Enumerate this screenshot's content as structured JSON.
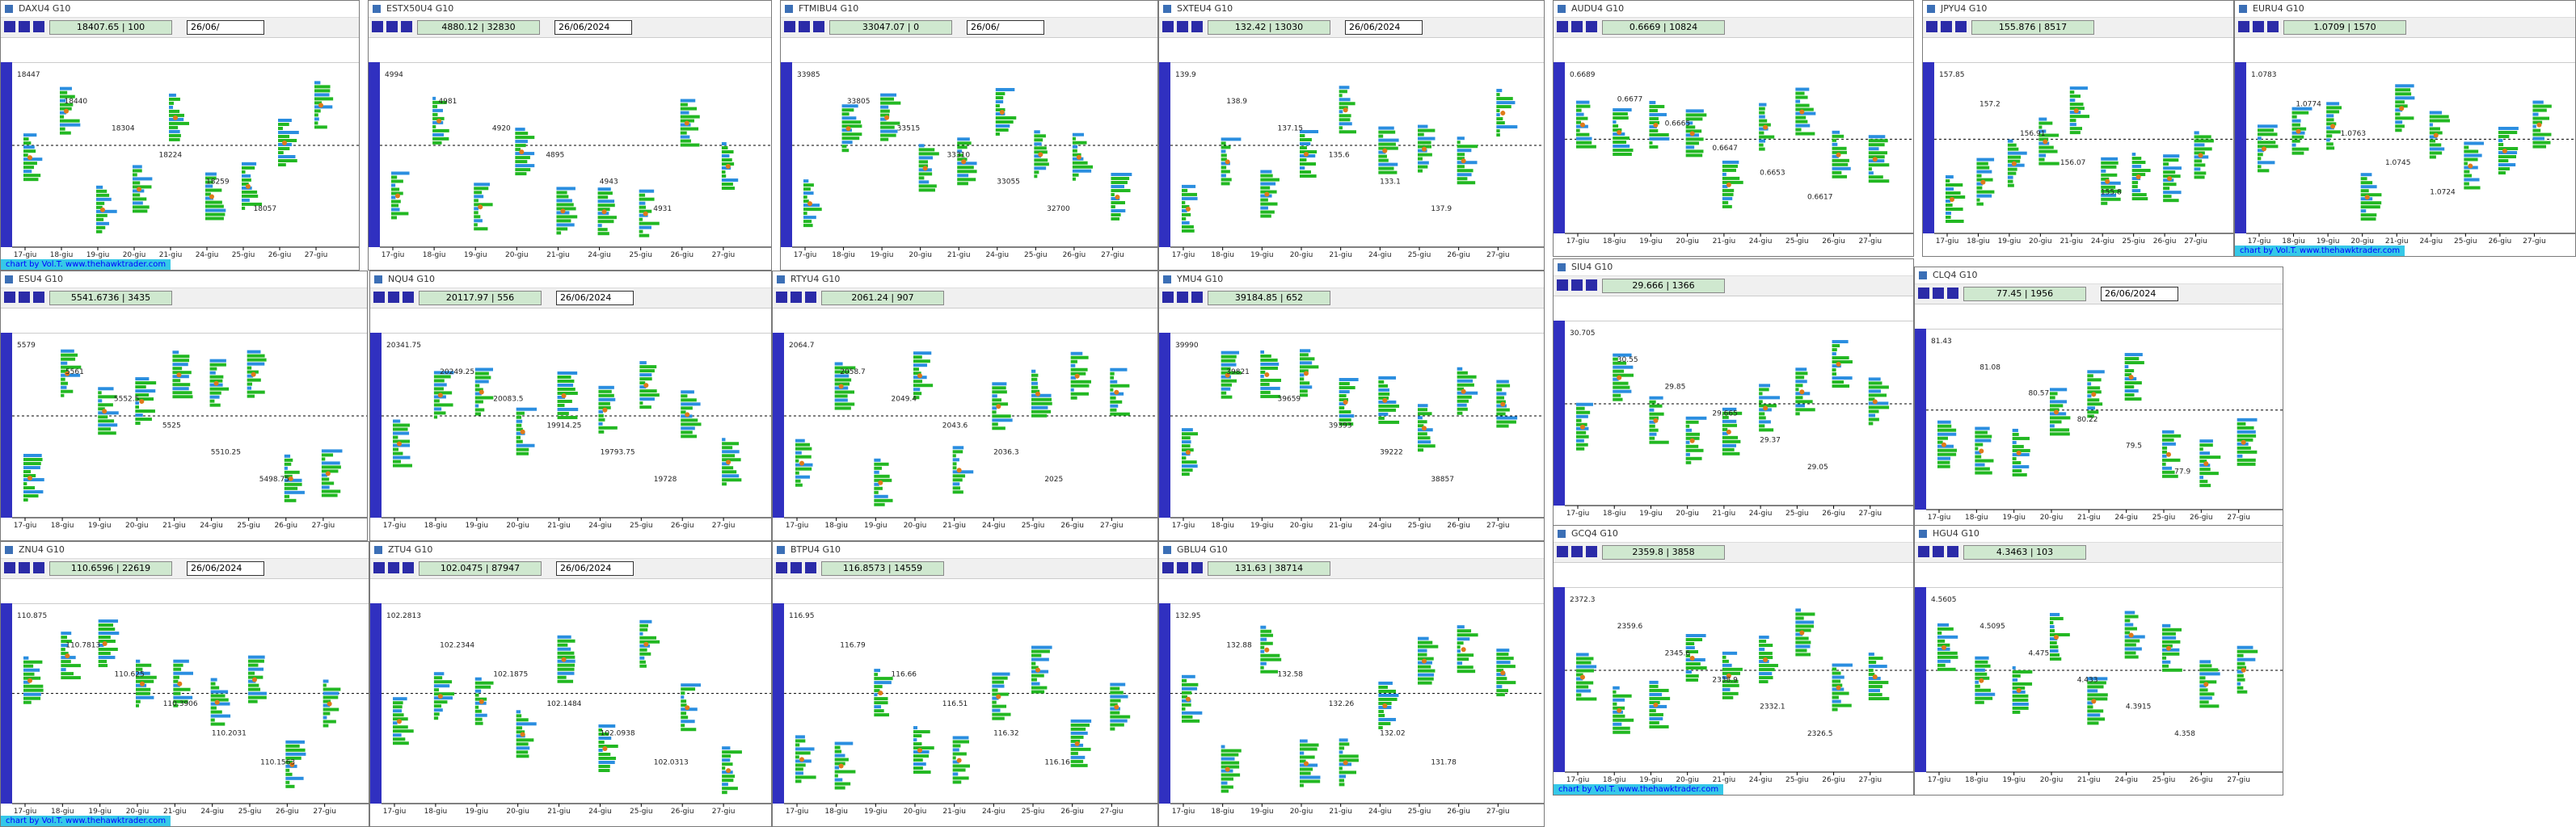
{
  "windows": [
    {
      "title": "DAXU4 G10",
      "quote": "18407.65 | 100",
      "date": "26/06/",
      "prices": [
        "18447",
        "18440",
        "18304",
        "18224",
        "18259",
        "18057"
      ],
      "footer": "chart by Vol.T. www.thehawktrader.com"
    },
    {
      "title": "ESTX50U4 G10",
      "quote": "4880.12 | 32830",
      "date": "26/06/2024",
      "prices": [
        "4994",
        "4981",
        "4920",
        "4895",
        "4943",
        "4931"
      ]
    },
    {
      "title": "FTMIBU4 G10",
      "quote": "33047.07 | 0",
      "date": "26/06/",
      "prices": [
        "33985",
        "33805",
        "33515",
        "33310",
        "33055",
        "32700"
      ]
    },
    {
      "title": "SXTEU4 G10",
      "quote": "132.42 | 13030",
      "date": "26/06/2024",
      "prices": [
        "139.9",
        "138.9",
        "137.15",
        "135.6",
        "133.1",
        "137.9"
      ]
    },
    {
      "title": "AUDU4 G10",
      "quote": "0.6669 | 10824",
      "prices": [
        "0.6689",
        "0.6677",
        "0.6665",
        "0.6647",
        "0.6653",
        "0.6617"
      ]
    },
    {
      "title": "JPYU4 G10",
      "quote": "155.876 | 8517",
      "prices": [
        "157.85",
        "157.2",
        "156.91",
        "156.07",
        "155.8"
      ]
    },
    {
      "title": "EURU4 G10",
      "quote": "1.0709 | 1570",
      "prices": [
        "1.0783",
        "1.0774",
        "1.0763",
        "1.0745",
        "1.0724"
      ],
      "footer": "chart by Vol.T. www.thehawktrader.com"
    },
    {
      "title": "ESU4 G10",
      "quote": "5541.6736 | 3435",
      "prices": [
        "5579",
        "5561",
        "5552.5",
        "5525",
        "5510.25",
        "5498.75"
      ]
    },
    {
      "title": "NQU4 G10",
      "quote": "20117.97 | 556",
      "date": "26/06/2024",
      "prices": [
        "20341.75",
        "20249.25",
        "20083.5",
        "19914.25",
        "19793.75",
        "19728"
      ]
    },
    {
      "title": "RTYU4 G10",
      "quote": "2061.24 | 907",
      "prices": [
        "2064.7",
        "2058.7",
        "2049.4",
        "2043.6",
        "2036.3",
        "2025"
      ]
    },
    {
      "title": "YMU4 G10",
      "quote": "39184.85 | 652",
      "prices": [
        "39990",
        "39821",
        "39659",
        "39393",
        "39222",
        "38857"
      ]
    },
    {
      "title": "SIU4 G10",
      "quote": "29.666 | 1366",
      "prices": [
        "30.705",
        "30.55",
        "29.85",
        "29.665",
        "29.37",
        "29.05"
      ]
    },
    {
      "title": "CLQ4 G10",
      "quote": "77.45 | 1956",
      "date": "26/06/2024",
      "prices": [
        "81.43",
        "81.08",
        "80.57",
        "80.22",
        "79.5",
        "77.9"
      ]
    },
    {
      "title": "ZNU4 G10",
      "quote": "110.6596 | 22619",
      "date": "26/06/2024",
      "prices": [
        "110.875",
        "110.7813",
        "110.625",
        "110.3906",
        "110.2031",
        "110.1563"
      ],
      "footer": "chart by Vol.T. www.thehawktrader.com"
    },
    {
      "title": "ZTU4 G10",
      "quote": "102.0475 | 87947",
      "date": "26/06/2024",
      "prices": [
        "102.2813",
        "102.2344",
        "102.1875",
        "102.1484",
        "102.0938",
        "102.0313"
      ]
    },
    {
      "title": "BTPU4 G10",
      "quote": "116.8573 | 14559",
      "prices": [
        "116.95",
        "116.79",
        "116.66",
        "116.51",
        "116.32",
        "116.16"
      ]
    },
    {
      "title": "GBLU4 G10",
      "quote": "131.63 | 38714",
      "prices": [
        "132.95",
        "132.88",
        "132.58",
        "132.26",
        "132.02",
        "131.78"
      ]
    },
    {
      "title": "GCQ4 G10",
      "quote": "2359.8 | 3858",
      "prices": [
        "2372.3",
        "2359.6",
        "2345.6",
        "2338.9",
        "2332.1",
        "2326.5"
      ],
      "footer": "chart by Vol.T. www.thehawktrader.com"
    },
    {
      "title": "HGU4 G10",
      "quote": "4.3463 | 103",
      "prices": [
        "4.5605",
        "4.5095",
        "4.475",
        "4.433",
        "4.3915",
        "4.358"
      ]
    }
  ],
  "dates": [
    "17-giu",
    "18-giu",
    "19-giu",
    "20-giu",
    "21-giu",
    "24-giu",
    "25-giu",
    "26-giu",
    "27-giu"
  ]
}
